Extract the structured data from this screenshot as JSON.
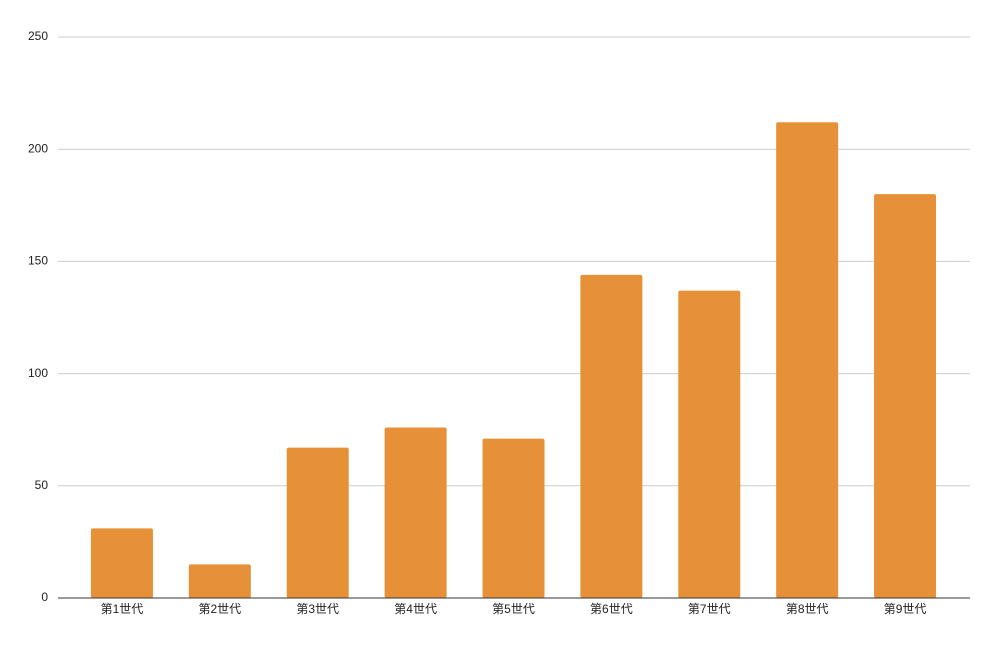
{
  "chart_data": {
    "type": "bar",
    "categories": [
      "第1世代",
      "第2世代",
      "第3世代",
      "第4世代",
      "第5世代",
      "第6世代",
      "第7世代",
      "第8世代",
      "第9世代"
    ],
    "values": [
      31,
      15,
      67,
      76,
      71,
      144,
      137,
      212,
      180
    ],
    "color": "#e69138",
    "ylim": [
      0,
      250
    ],
    "yticks": [
      0,
      50,
      100,
      150,
      200,
      250
    ],
    "grid": true
  }
}
